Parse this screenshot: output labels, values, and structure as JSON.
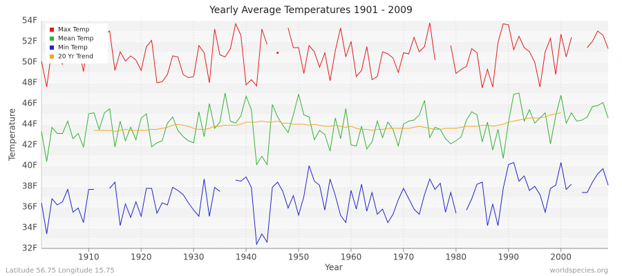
{
  "chart_data": {
    "type": "line",
    "title": "Yearly Average Temperatures 1901 - 2009",
    "xlabel": "Year",
    "ylabel": "Temperature",
    "footer_left": "Latitude 56.75 Longitude 15.75",
    "footer_right": "worldspecies.org",
    "legend": "upper left",
    "grid": true,
    "xlim": [
      1901,
      2009
    ],
    "xticks": [
      1910,
      1920,
      1930,
      1940,
      1950,
      1960,
      1970,
      1980,
      1990,
      2000
    ],
    "ylim": [
      32,
      54
    ],
    "yticks": [
      {
        "value": 32,
        "label": "32F"
      },
      {
        "value": 34,
        "label": "34F"
      },
      {
        "value": 36,
        "label": "36F"
      },
      {
        "value": 38,
        "label": "38F"
      },
      {
        "value": 40,
        "label": "40F"
      },
      {
        "value": 42,
        "label": "42F"
      },
      {
        "value": 44,
        "label": "44F"
      },
      {
        "value": 46,
        "label": "46F"
      },
      {
        "value": 48,
        "label": "48F"
      },
      {
        "value": 50,
        "label": "50F"
      },
      {
        "value": 52,
        "label": "52F"
      },
      {
        "value": 54,
        "label": "54F"
      }
    ],
    "x": [
      1901,
      1902,
      1903,
      1904,
      1905,
      1906,
      1907,
      1908,
      1909,
      1910,
      1911,
      1912,
      1913,
      1914,
      1915,
      1916,
      1917,
      1918,
      1919,
      1920,
      1921,
      1922,
      1923,
      1924,
      1925,
      1926,
      1927,
      1928,
      1929,
      1930,
      1931,
      1932,
      1933,
      1934,
      1935,
      1936,
      1937,
      1938,
      1939,
      1940,
      1941,
      1942,
      1943,
      1944,
      1945,
      1946,
      1947,
      1948,
      1949,
      1950,
      1951,
      1952,
      1953,
      1954,
      1955,
      1956,
      1957,
      1958,
      1959,
      1960,
      1961,
      1962,
      1963,
      1964,
      1965,
      1966,
      1967,
      1968,
      1969,
      1970,
      1971,
      1972,
      1973,
      1974,
      1975,
      1976,
      1977,
      1978,
      1979,
      1980,
      1981,
      1982,
      1983,
      1984,
      1985,
      1986,
      1987,
      1988,
      1989,
      1990,
      1991,
      1992,
      1993,
      1994,
      1995,
      1996,
      1997,
      1998,
      1999,
      2000,
      2001,
      2002,
      2003,
      2004,
      2005,
      2006,
      2007,
      2008,
      2009
    ],
    "series": [
      {
        "name": "Max Temp",
        "color": "#e31a1c",
        "values": [
          50.1,
          47.6,
          51.3,
          50.2,
          49.8,
          50.8,
          50.1,
          51.6,
          49.1,
          52.2,
          52.3,
          52.1,
          52.7,
          53.0,
          49.2,
          51.0,
          50.1,
          50.6,
          50.2,
          49.2,
          51.5,
          52.1,
          48.0,
          48.1,
          48.8,
          50.6,
          50.5,
          48.8,
          48.5,
          48.6,
          51.6,
          50.9,
          48.0,
          53.2,
          50.7,
          50.5,
          51.3,
          53.7,
          52.6,
          47.8,
          48.3,
          47.7,
          53.2,
          51.7,
          null,
          50.9,
          null,
          53.3,
          51.4,
          51.4,
          48.9,
          51.6,
          51.0,
          49.5,
          50.9,
          48.2,
          51.1,
          53.3,
          50.5,
          52.0,
          48.6,
          49.2,
          51.5,
          48.3,
          48.6,
          51.0,
          50.8,
          50.4,
          49.0,
          50.9,
          50.8,
          52.4,
          51.0,
          51.5,
          53.8,
          50.2,
          null,
          null,
          51.6,
          48.9,
          49.3,
          49.6,
          51.3,
          50.9,
          47.5,
          49.3,
          47.6,
          51.9,
          53.7,
          53.6,
          51.2,
          52.5,
          51.4,
          51.0,
          50.0,
          47.6,
          51.0,
          52.3,
          48.8,
          52.7,
          50.5,
          52.4,
          null,
          null,
          51.4,
          52.0,
          53.0,
          52.6,
          51.3
        ]
      },
      {
        "name": "Mean Temp",
        "color": "#33b233",
        "values": [
          43.3,
          40.4,
          43.7,
          43.1,
          43.1,
          44.3,
          42.6,
          43.1,
          41.8,
          45.0,
          45.1,
          43.5,
          45.1,
          45.5,
          41.8,
          44.3,
          42.4,
          43.7,
          42.5,
          44.6,
          45.0,
          41.8,
          42.2,
          42.4,
          44.1,
          44.7,
          43.4,
          42.8,
          42.4,
          42.2,
          45.2,
          42.8,
          46.0,
          43.6,
          44.2,
          47.0,
          44.3,
          44.1,
          44.8,
          46.7,
          45.4,
          40.1,
          40.9,
          40.1,
          45.9,
          44.7,
          43.9,
          43.2,
          44.9,
          46.9,
          44.9,
          44.7,
          42.5,
          43.4,
          43.0,
          41.4,
          44.6,
          42.6,
          45.5,
          42.0,
          41.9,
          43.8,
          41.6,
          42.3,
          44.3,
          42.7,
          44.2,
          43.5,
          41.9,
          44.0,
          44.3,
          44.4,
          44.9,
          46.3,
          42.7,
          43.7,
          43.5,
          42.6,
          42.1,
          42.4,
          42.8,
          44.4,
          45.2,
          44.9,
          42.3,
          44.2,
          41.5,
          43.5,
          40.7,
          44.2,
          46.9,
          47.0,
          44.3,
          45.4,
          44.1,
          44.6,
          45.1,
          42.1,
          44.8,
          46.8,
          44.1,
          45.1,
          44.3,
          44.4,
          44.7,
          45.7,
          45.8,
          46.1,
          44.6
        ]
      },
      {
        "name": "Min Temp",
        "color": "#2222cc",
        "values": [
          36.4,
          33.4,
          36.8,
          36.2,
          36.5,
          37.7,
          35.5,
          35.9,
          34.5,
          37.7,
          37.7,
          null,
          null,
          37.8,
          38.4,
          34.2,
          36.3,
          35.0,
          36.5,
          35.1,
          37.8,
          37.8,
          35.4,
          36.4,
          36.2,
          37.9,
          37.6,
          37.2,
          36.4,
          35.7,
          35.1,
          38.7,
          35.1,
          37.9,
          37.5,
          null,
          null,
          38.6,
          38.5,
          38.9,
          37.9,
          32.4,
          33.4,
          32.6,
          37.9,
          38.4,
          37.5,
          35.9,
          37.1,
          35.2,
          37.0,
          40.0,
          38.5,
          38.1,
          35.7,
          38.7,
          37.1,
          35.2,
          34.5,
          37.6,
          35.8,
          38.2,
          35.6,
          37.4,
          35.3,
          35.8,
          34.5,
          35.3,
          36.7,
          37.8,
          36.8,
          35.8,
          35.3,
          37.2,
          38.7,
          37.7,
          38.3,
          35.5,
          37.4,
          35.4,
          null,
          35.7,
          36.8,
          38.2,
          38.4,
          34.2,
          36.3,
          34.2,
          37.8,
          40.1,
          40.3,
          38.5,
          39.0,
          37.6,
          38.0,
          37.2,
          35.5,
          37.8,
          38.1,
          40.3,
          37.7,
          38.2,
          null,
          37.4,
          37.4,
          38.4,
          39.2,
          39.7,
          38.1
        ]
      },
      {
        "name": "20 Yr Trend",
        "color": "#f5a623",
        "values": [
          null,
          null,
          null,
          null,
          null,
          null,
          null,
          null,
          null,
          null,
          43.4,
          43.4,
          43.4,
          43.4,
          43.3,
          43.4,
          43.5,
          43.4,
          43.4,
          43.4,
          43.4,
          43.5,
          43.5,
          43.6,
          43.7,
          43.9,
          44.0,
          43.9,
          43.8,
          43.6,
          43.5,
          43.5,
          43.6,
          43.8,
          43.8,
          43.9,
          43.9,
          43.9,
          44.0,
          44.2,
          44.2,
          44.2,
          44.3,
          44.2,
          44.2,
          44.3,
          44.1,
          44.1,
          44.0,
          44.0,
          44.0,
          43.9,
          44.0,
          43.9,
          43.8,
          43.8,
          43.9,
          43.8,
          43.7,
          43.8,
          43.6,
          43.5,
          43.5,
          43.4,
          43.5,
          43.5,
          43.6,
          43.6,
          43.6,
          43.6,
          43.6,
          43.7,
          43.8,
          43.7,
          43.6,
          43.5,
          43.5,
          43.6,
          43.6,
          43.6,
          43.7,
          43.8,
          43.8,
          43.8,
          43.9,
          43.9,
          43.8,
          43.9,
          44.0,
          44.2,
          44.3,
          44.4,
          44.5,
          44.6,
          44.6,
          44.6,
          44.7,
          44.9,
          45.0,
          45.1,
          null,
          null,
          null,
          null,
          null,
          null,
          null,
          null,
          null
        ]
      }
    ]
  }
}
